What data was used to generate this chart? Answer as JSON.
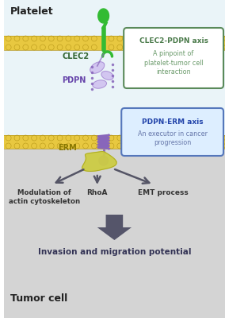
{
  "bg_top": "#eaf4f8",
  "bg_bottom": "#d4d4d4",
  "membrane_color_fill": "#e8c840",
  "membrane_color_edge": "#b89818",
  "platelet_label": "Platelet",
  "tumor_label": "Tumor cell",
  "clec2_label": "CLEC2",
  "pdpn_label": "PDPN",
  "erm_label": "ERM",
  "box1_title": "CLEC2-PDPN axis",
  "box1_text": "A pinpoint of\nplatelet-tumor cell\ninteraction",
  "box1_border": "#5a8a5a",
  "box1_title_color": "#4a7a4a",
  "box1_text_color": "#6a9a6a",
  "box2_title": "PDPN-ERM axis",
  "box2_text": "An executor in cancer\nprogression",
  "box2_bg": "#ddeeff",
  "box2_border": "#5577bb",
  "box2_title_color": "#2244aa",
  "box2_text_color": "#6677aa",
  "arrow_color": "#555566",
  "big_arrow_color": "#55556a",
  "label1": "Modulation of\nactin cytoskeleton",
  "label2": "RhoA",
  "label3": "EMT process",
  "big_label": "Invasion and migration potential",
  "clec2_color": "#33bb33",
  "clec2_hook_color": "#44cc44",
  "pdpn_color_light": "#ccbbee",
  "pdpn_color_dark": "#8866bb",
  "pdpn_spring_color": "#8866bb",
  "erm_color": "#cccc44",
  "erm_edge_color": "#aaa820",
  "clec2_label_color": "#336633",
  "pdpn_label_color": "#6644aa",
  "erm_label_color": "#887700",
  "label_color": "#333333"
}
